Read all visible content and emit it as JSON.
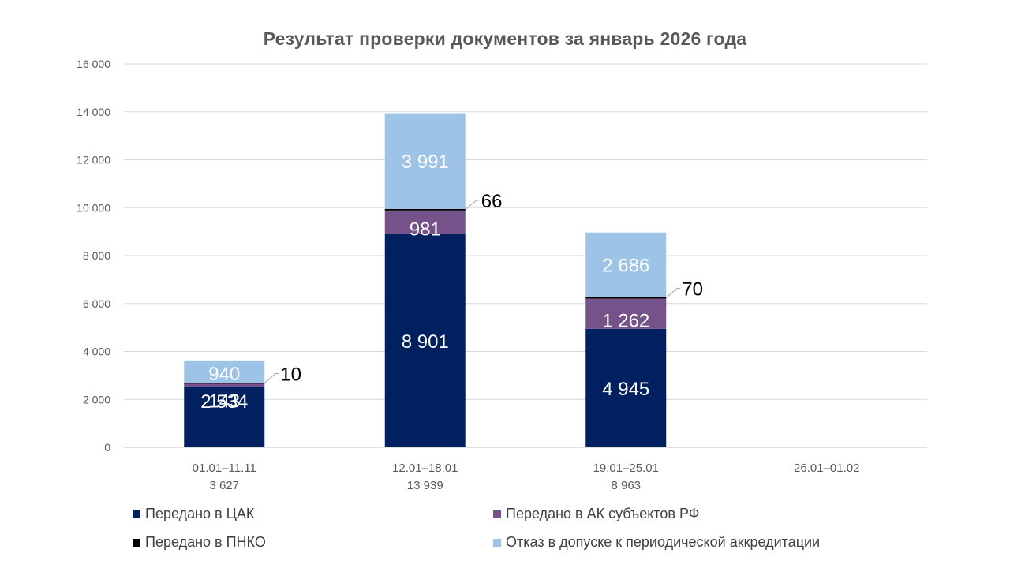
{
  "chart_data": {
    "type": "bar",
    "stacked": true,
    "title": "Результат проверки документов за январь 2026 года",
    "xlabel": "",
    "ylabel": "",
    "ylim": [
      0,
      16000
    ],
    "yticks": [
      0,
      2000,
      4000,
      6000,
      8000,
      10000,
      12000,
      14000,
      16000
    ],
    "ytick_labels": [
      "0",
      "2 000",
      "4 000",
      "6 000",
      "8 000",
      "10 000",
      "12 000",
      "14 000",
      "16 000"
    ],
    "grid": true,
    "legend_position": "bottom",
    "categories": [
      "01.01–11.11",
      "12.01–18.01",
      "19.01–25.01",
      "26.01–01.02"
    ],
    "category_totals": [
      "3 627",
      "13 939",
      "8 963",
      ""
    ],
    "series": [
      {
        "name": "Передано в ЦАК",
        "color": "#002060",
        "values": [
          2534,
          8901,
          4945,
          null
        ],
        "labels": [
          "2 534",
          "8 901",
          "4 945",
          ""
        ]
      },
      {
        "name": "Передано в АК субъектов РФ",
        "color": "#76528A",
        "values": [
          143,
          981,
          1262,
          null
        ],
        "labels": [
          "143",
          "981",
          "1 262",
          ""
        ]
      },
      {
        "name": "Передано в ПНКО",
        "color": "#000000",
        "values": [
          10,
          66,
          70,
          null
        ],
        "labels": [
          "10",
          "66",
          "70",
          ""
        ]
      },
      {
        "name": "Отказ в допуске к периодической аккредитации",
        "color": "#9DC3E6",
        "values": [
          940,
          3991,
          2686,
          null
        ],
        "labels": [
          "940",
          "3 991",
          "2 686",
          ""
        ]
      }
    ]
  }
}
